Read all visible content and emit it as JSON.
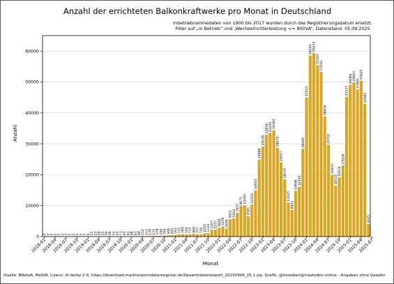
{
  "chart_data": {
    "type": "bar",
    "title": "Anzahl der errichteten Balkonkraftwerke pro Monat in Deutschland",
    "subtitle_lines": [
      "Inbetriebnahmedaten von 1900 bis 2017 wurden durch das Registrierungsdatum ersetzt.",
      "Filter auf „in Betrieb“ und „Wechselrichterleistung <= 800VA“, Datenstand: 05.09.2025"
    ],
    "xlabel": "Monat",
    "ylabel": "Anzahl",
    "ylim": [
      0,
      65000
    ],
    "yticks": [
      0,
      10000,
      20000,
      30000,
      40000,
      50000,
      60000
    ],
    "ytick_labels": [
      "0",
      "10000",
      "20000",
      "30000",
      "40000",
      "50000",
      "60000"
    ],
    "grid": true,
    "bar_color": "#DAA520",
    "x_tick_labels": [
      "2018-01",
      "2018-04",
      "2018-07",
      "2018-10",
      "2019-01",
      "2019-04",
      "2019-07",
      "2019-10",
      "2020-01",
      "2020-04",
      "2020-07",
      "2020-10",
      "2021-01",
      "2021-04",
      "2021-07",
      "2021-10",
      "2022-01",
      "2022-04",
      "2022-07",
      "2022-10",
      "2023-01",
      "2023-04",
      "2023-07",
      "2023-10",
      "2024-01",
      "2024-04",
      "2024-07",
      "2024-10",
      "2025-01",
      "2025-04",
      "2025-07"
    ],
    "values": [
      2,
      2,
      3,
      5,
      5,
      2,
      3,
      5,
      2,
      4,
      5,
      5,
      9,
      15,
      23,
      28,
      35,
      30,
      48,
      53,
      42,
      71,
      65,
      81,
      48,
      81,
      98,
      114,
      113,
      178,
      174,
      278,
      196,
      304,
      368,
      491,
      562,
      721,
      789,
      700,
      715,
      869,
      757,
      745,
      1030,
      1144,
      2207,
      2257,
      2808,
      3258,
      2600,
      5611,
      5914,
      7657,
      9875,
      10093,
      6581,
      10350,
      14943,
      24888,
      29128,
      32958,
      33436,
      34392,
      28679,
      24017,
      18535,
      11045,
      8603,
      14806,
      16103,
      28409,
      45013,
      58545,
      59433,
      55465,
      53216,
      38858,
      29702,
      19915,
      16535,
      19124,
      23028,
      45237,
      49084,
      49863,
      47605,
      50425,
      42981,
      4025
    ],
    "value_labels": [
      "2",
      "2",
      "3",
      "5",
      "5",
      "2",
      "3",
      "5",
      "2",
      "4",
      "5",
      "5",
      "9",
      "15",
      "23",
      "28",
      "35",
      "30",
      "48",
      "53",
      "42",
      "71",
      "65",
      "81",
      "48",
      "81",
      "98",
      "114",
      "113",
      "178",
      "174",
      "278",
      "196",
      "304",
      "368",
      "491",
      "562",
      "721",
      "789",
      "700",
      "715",
      "869",
      "757",
      "745",
      "1030",
      "1144",
      "2207",
      "2257",
      "2808",
      "3258",
      "2600",
      "5611",
      "5914",
      "7657",
      "9875",
      "10093",
      "6581",
      "10350",
      "14943",
      "24888",
      "29128",
      "32958",
      "33436",
      "34392",
      "28679",
      "24017",
      "18535",
      "11045",
      "8603",
      "14806",
      "16103",
      "28409",
      "45013",
      "58545",
      "59433",
      "55465",
      "53216",
      "38858",
      "29702",
      "19915",
      "16535",
      "19124",
      "23028",
      "45237",
      "49084",
      "49863",
      "47605",
      "50425",
      "42981",
      "4025"
    ]
  },
  "source_note": "Quelle: BNetzA, MaStR, Lizenz: dl-de/by-2-0; https://download.marktstammdatenregister.de/Gesamtdatenexport_20250906_25.1.zip, Grafik: @tinoeberl@mastodon.online - Angaben ohne Gewähr."
}
